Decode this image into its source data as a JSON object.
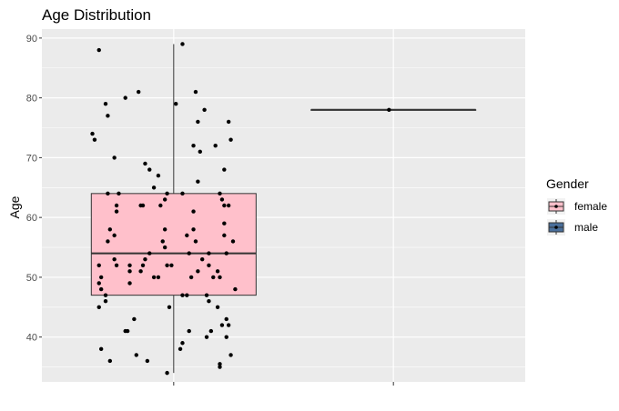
{
  "chart_data": {
    "type": "box",
    "title": "Age Distribution",
    "xlabel": "",
    "ylabel": "Age",
    "ylim": [
      32.5,
      91.5
    ],
    "yticks": [
      40,
      50,
      60,
      70,
      80,
      90
    ],
    "grid": true,
    "legend": {
      "title": "Gender",
      "position": "right",
      "entries": [
        {
          "label": "female",
          "fill": "#ffc0cb"
        },
        {
          "label": "male",
          "fill": "#4a6f9b"
        }
      ]
    },
    "series": [
      {
        "group": 1,
        "name": "female",
        "fill": "#ffc0cb",
        "box": {
          "whisker_low": 34,
          "q1": 47,
          "median": 54,
          "q3": 64,
          "whisker_high": 89
        },
        "points": [
          {
            "x": 0.66,
            "y": 88
          },
          {
            "x": 0.69,
            "y": 79
          },
          {
            "x": 0.7,
            "y": 77
          },
          {
            "x": 0.73,
            "y": 70
          },
          {
            "x": 0.78,
            "y": 80
          },
          {
            "x": 0.84,
            "y": 81
          },
          {
            "x": 0.63,
            "y": 74
          },
          {
            "x": 0.64,
            "y": 73
          },
          {
            "x": 0.7,
            "y": 64
          },
          {
            "x": 0.75,
            "y": 64
          },
          {
            "x": 0.74,
            "y": 62
          },
          {
            "x": 0.74,
            "y": 61
          },
          {
            "x": 0.71,
            "y": 58
          },
          {
            "x": 0.73,
            "y": 57
          },
          {
            "x": 0.7,
            "y": 56
          },
          {
            "x": 0.73,
            "y": 53
          },
          {
            "x": 0.74,
            "y": 52
          },
          {
            "x": 0.66,
            "y": 52
          },
          {
            "x": 0.67,
            "y": 50
          },
          {
            "x": 0.66,
            "y": 49
          },
          {
            "x": 0.67,
            "y": 48
          },
          {
            "x": 0.69,
            "y": 47
          },
          {
            "x": 0.69,
            "y": 46
          },
          {
            "x": 0.66,
            "y": 45
          },
          {
            "x": 0.8,
            "y": 52
          },
          {
            "x": 0.8,
            "y": 51
          },
          {
            "x": 0.8,
            "y": 49
          },
          {
            "x": 0.85,
            "y": 51
          },
          {
            "x": 0.86,
            "y": 52
          },
          {
            "x": 0.87,
            "y": 53
          },
          {
            "x": 0.89,
            "y": 54
          },
          {
            "x": 0.87,
            "y": 69
          },
          {
            "x": 0.89,
            "y": 68
          },
          {
            "x": 0.85,
            "y": 62
          },
          {
            "x": 0.86,
            "y": 62
          },
          {
            "x": 0.94,
            "y": 62
          },
          {
            "x": 0.96,
            "y": 63
          },
          {
            "x": 0.97,
            "y": 64
          },
          {
            "x": 0.93,
            "y": 67
          },
          {
            "x": 0.91,
            "y": 65
          },
          {
            "x": 0.96,
            "y": 58
          },
          {
            "x": 0.95,
            "y": 56
          },
          {
            "x": 0.96,
            "y": 55
          },
          {
            "x": 0.93,
            "y": 50
          },
          {
            "x": 0.97,
            "y": 52
          },
          {
            "x": 0.99,
            "y": 52
          },
          {
            "x": 0.91,
            "y": 50
          },
          {
            "x": 0.79,
            "y": 41
          },
          {
            "x": 0.78,
            "y": 41
          },
          {
            "x": 0.82,
            "y": 43
          },
          {
            "x": 0.83,
            "y": 37
          },
          {
            "x": 0.88,
            "y": 36
          },
          {
            "x": 0.67,
            "y": 38
          },
          {
            "x": 0.71,
            "y": 36
          },
          {
            "x": 1.01,
            "y": 79
          },
          {
            "x": 1.04,
            "y": 89
          },
          {
            "x": 1.1,
            "y": 81
          },
          {
            "x": 1.14,
            "y": 78
          },
          {
            "x": 1.11,
            "y": 76
          },
          {
            "x": 1.09,
            "y": 72
          },
          {
            "x": 1.12,
            "y": 71
          },
          {
            "x": 1.25,
            "y": 76
          },
          {
            "x": 1.26,
            "y": 73
          },
          {
            "x": 1.19,
            "y": 72
          },
          {
            "x": 1.23,
            "y": 68
          },
          {
            "x": 1.11,
            "y": 66
          },
          {
            "x": 1.04,
            "y": 64
          },
          {
            "x": 1.09,
            "y": 61
          },
          {
            "x": 1.21,
            "y": 64
          },
          {
            "x": 1.22,
            "y": 63
          },
          {
            "x": 1.23,
            "y": 62
          },
          {
            "x": 1.25,
            "y": 62
          },
          {
            "x": 1.23,
            "y": 59
          },
          {
            "x": 1.23,
            "y": 57
          },
          {
            "x": 1.27,
            "y": 56
          },
          {
            "x": 1.09,
            "y": 58
          },
          {
            "x": 1.06,
            "y": 57
          },
          {
            "x": 1.1,
            "y": 56
          },
          {
            "x": 1.07,
            "y": 54
          },
          {
            "x": 1.16,
            "y": 54
          },
          {
            "x": 1.13,
            "y": 53
          },
          {
            "x": 1.16,
            "y": 52
          },
          {
            "x": 1.11,
            "y": 51
          },
          {
            "x": 1.18,
            "y": 50
          },
          {
            "x": 1.2,
            "y": 51
          },
          {
            "x": 1.21,
            "y": 50
          },
          {
            "x": 1.24,
            "y": 54
          },
          {
            "x": 1.04,
            "y": 47
          },
          {
            "x": 1.06,
            "y": 47
          },
          {
            "x": 1.08,
            "y": 50
          },
          {
            "x": 1.15,
            "y": 47
          },
          {
            "x": 1.16,
            "y": 46
          },
          {
            "x": 1.28,
            "y": 48
          },
          {
            "x": 1.2,
            "y": 45
          },
          {
            "x": 1.22,
            "y": 42
          },
          {
            "x": 1.24,
            "y": 43
          },
          {
            "x": 1.25,
            "y": 42
          },
          {
            "x": 1.17,
            "y": 41
          },
          {
            "x": 1.15,
            "y": 40
          },
          {
            "x": 1.21,
            "y": 35
          },
          {
            "x": 1.21,
            "y": 35.5
          },
          {
            "x": 1.26,
            "y": 37
          },
          {
            "x": 1.24,
            "y": 40
          },
          {
            "x": 1.07,
            "y": 41
          },
          {
            "x": 1.04,
            "y": 39
          },
          {
            "x": 1.03,
            "y": 38
          },
          {
            "x": 0.97,
            "y": 34
          },
          {
            "x": 0.98,
            "y": 45
          }
        ]
      },
      {
        "group": 2,
        "name": "male",
        "fill": "#4a6f9b",
        "box": {
          "whisker_low": 78,
          "q1": 78,
          "median": 78,
          "q3": 78,
          "whisker_high": 78
        },
        "points": [
          {
            "x": 1.98,
            "y": 78
          }
        ]
      }
    ]
  }
}
